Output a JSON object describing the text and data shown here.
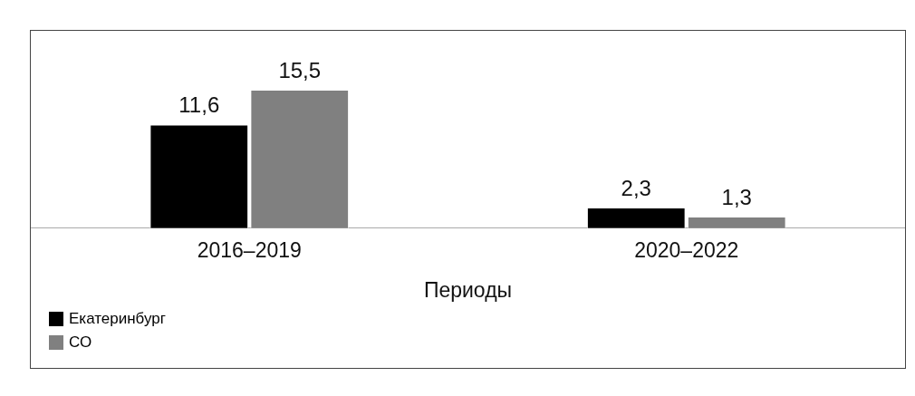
{
  "chart_data": {
    "type": "bar",
    "xlabel": "Периоды",
    "categories": [
      "2016–2019",
      "2020–2022"
    ],
    "legend": "bottom left",
    "grid": false,
    "series": [
      {
        "name": "Екатеринбург",
        "color": "#000000",
        "values": [
          11.6,
          2.3
        ],
        "value_labels": [
          "11,6",
          "2,3"
        ]
      },
      {
        "name": "СО",
        "color": "#808080",
        "values": [
          15.5,
          1.3
        ],
        "value_labels": [
          "15,5",
          "1,3"
        ]
      }
    ]
  }
}
